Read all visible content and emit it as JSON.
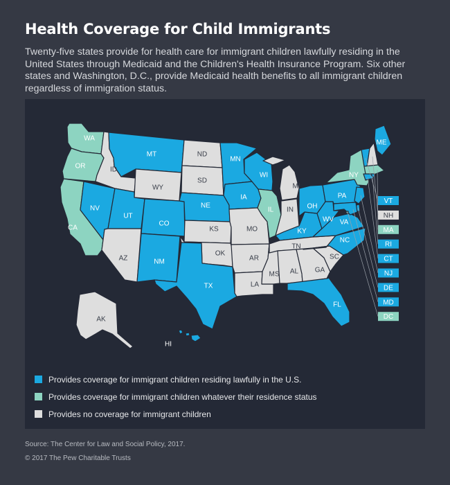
{
  "header": {
    "title": "Health Coverage for Child Immigrants",
    "subtitle": "Twenty-five states provide for health care for immigrant children lawfully residing in the United States through Medicaid and the Children's Health Insurance Program. Six other states and Washington, D.C., provide Medicaid health benefits to all immigrant children regardless of immigration status."
  },
  "colors": {
    "lawful": "#1ba9e1",
    "all": "#8dd4c1",
    "none": "#dedede",
    "panel": "#242936",
    "background": "#353944"
  },
  "map": {
    "states": {
      "WA": "all",
      "OR": "all",
      "CA": "all",
      "NV": "lawful",
      "ID": "none",
      "MT": "lawful",
      "WY": "none",
      "UT": "lawful",
      "AZ": "none",
      "CO": "lawful",
      "NM": "lawful",
      "ND": "none",
      "SD": "none",
      "NE": "lawful",
      "KS": "none",
      "OK": "none",
      "TX": "lawful",
      "MN": "lawful",
      "IA": "lawful",
      "MO": "none",
      "AR": "none",
      "LA": "none",
      "WI": "lawful",
      "IL": "all",
      "MS": "none",
      "MI": "none",
      "IN": "none",
      "KY": "lawful",
      "TN": "none",
      "AL": "none",
      "GA": "none",
      "FL": "lawful",
      "SC": "none",
      "NC": "lawful",
      "VA": "lawful",
      "WV": "lawful",
      "OH": "lawful",
      "PA": "lawful",
      "NY": "all",
      "ME": "lawful",
      "AK": "none",
      "HI": "lawful",
      "VT": "lawful",
      "NH": "none",
      "MA": "all",
      "RI": "lawful",
      "CT": "lawful",
      "NJ": "lawful",
      "DE": "lawful",
      "MD": "lawful",
      "DC": "all"
    },
    "labels": [
      "WA",
      "OR",
      "CA",
      "NV",
      "ID",
      "MT",
      "WY",
      "UT",
      "AZ",
      "CO",
      "NM",
      "ND",
      "SD",
      "NE",
      "KS",
      "OK",
      "TX",
      "MN",
      "IA",
      "MO",
      "AR",
      "LA",
      "WI",
      "IL",
      "MS",
      "MI",
      "IN",
      "KY",
      "TN",
      "AL",
      "GA",
      "FL",
      "SC",
      "NC",
      "VA",
      "WV",
      "OH",
      "PA",
      "NY",
      "ME",
      "AK",
      "HI"
    ],
    "small_states": [
      {
        "code": "VT",
        "status": "lawful"
      },
      {
        "code": "NH",
        "status": "none"
      },
      {
        "code": "MA",
        "status": "all"
      },
      {
        "code": "RI",
        "status": "lawful"
      },
      {
        "code": "CT",
        "status": "lawful"
      },
      {
        "code": "NJ",
        "status": "lawful"
      },
      {
        "code": "DE",
        "status": "lawful"
      },
      {
        "code": "MD",
        "status": "lawful"
      },
      {
        "code": "DC",
        "status": "all"
      }
    ]
  },
  "legend": [
    {
      "status": "lawful",
      "label": "Provides coverage for immigrant children residing lawfully in the U.S."
    },
    {
      "status": "all",
      "label": "Provides coverage for immigrant children whatever their residence status"
    },
    {
      "status": "none",
      "label": "Provides no coverage for immigrant children"
    }
  ],
  "footer": {
    "source": "Source: The Center for Law and Social Policy, 2017.",
    "copyright": "© 2017 The Pew Charitable Trusts"
  }
}
